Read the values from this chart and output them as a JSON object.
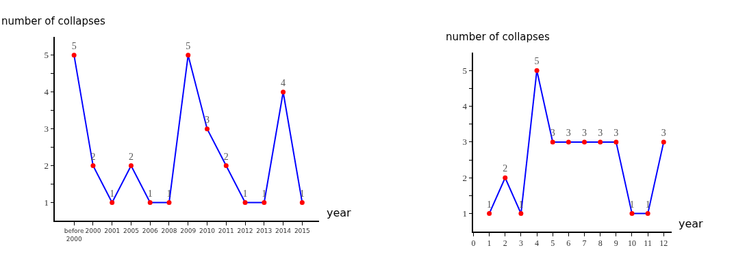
{
  "chart_data": [
    {
      "type": "line",
      "xlabel": "year",
      "ylabel": "number of collapses",
      "categories": [
        "before 2000",
        "2000",
        "2001",
        "2005",
        "2006",
        "2008",
        "2009",
        "2010",
        "2011",
        "2012",
        "2013",
        "2014",
        "2015"
      ],
      "series": [
        {
          "color": "#0000ff",
          "colors": [
            "#ff0000",
            "#ff0000",
            "#ff0000",
            "#ff0000",
            "#ff0000",
            "#ff0000",
            "#ff0000",
            "#ff0000",
            "#ff0000",
            "#ff0000",
            "#ff0000",
            "#ff0000",
            "#ff0000"
          ],
          "values": [
            5,
            2,
            1,
            2,
            1,
            1,
            5,
            3,
            2,
            1,
            1,
            4,
            1
          ]
        }
      ],
      "ylim": [
        0.5,
        5.5
      ],
      "yticks": [
        1,
        {
          "value": 1.5,
          "label": null
        },
        2,
        {
          "value": 2.5,
          "label": null
        },
        3,
        {
          "value": 3.5,
          "label": null
        },
        4,
        {
          "value": 4.5,
          "label": null
        },
        5
      ],
      "marker": "circle",
      "line_style": "solid",
      "data_labels": true
    },
    {
      "type": "line",
      "xlabel": "year",
      "ylabel": "number of collapses",
      "x": [
        1,
        2,
        3,
        4,
        5,
        6,
        7,
        8,
        9,
        10,
        11,
        12
      ],
      "series": [
        {
          "color": "#0000ff",
          "colors": [
            "#ff0000",
            "#ff0000",
            "#ff0000",
            "#ff0000",
            "#ff0000",
            "#ff0000",
            "#ff0000",
            "#ff0000",
            "#ff0000",
            "#ff0000",
            "#ff0000",
            "#ff0000"
          ],
          "values": [
            1,
            2,
            1,
            5,
            3,
            3,
            3,
            3,
            3,
            1,
            1,
            3
          ]
        }
      ],
      "xlim": [
        0,
        12.5
      ],
      "xticks": [
        0,
        1,
        2,
        3,
        4,
        5,
        6,
        7,
        8,
        9,
        10,
        11,
        12
      ],
      "ylim": [
        0.5,
        5.5
      ],
      "yticks": [
        1,
        {
          "value": 1.5,
          "label": null
        },
        2,
        {
          "value": 2.5,
          "label": null
        },
        3,
        {
          "value": 3.5,
          "label": null
        },
        4,
        {
          "value": 4.5,
          "label": null
        },
        5
      ],
      "marker": "circle",
      "line_style": "solid",
      "data_labels": true
    }
  ]
}
